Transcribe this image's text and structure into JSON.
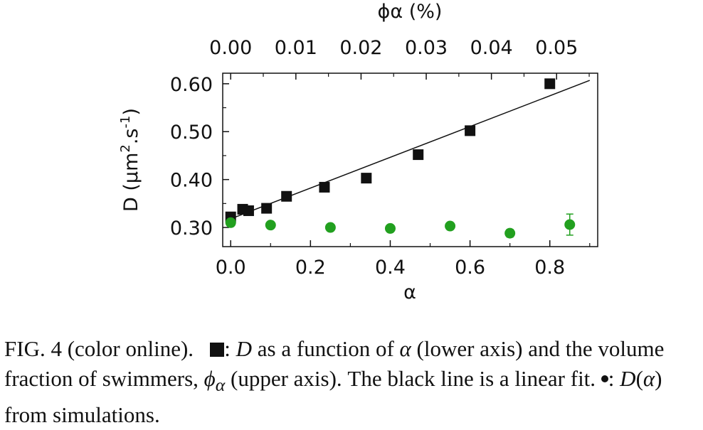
{
  "chart_data": {
    "type": "scatter",
    "xlabel": "α",
    "x2label": "ϕα (%)",
    "ylabel_parts": [
      "D (μm",
      "2",
      ".s",
      "-1",
      ")"
    ],
    "xlim": [
      -0.02,
      0.92
    ],
    "ylim": [
      0.26,
      0.622
    ],
    "x_ticks": [
      0.0,
      0.2,
      0.4,
      0.6,
      0.8
    ],
    "x_tick_labels": [
      "0.0",
      "0.2",
      "0.4",
      "0.6",
      "0.8"
    ],
    "x2_ticks": [
      0.0,
      0.01,
      0.02,
      0.03,
      0.04,
      0.05
    ],
    "x2_tick_labels": [
      "0.00",
      "0.01",
      "0.02",
      "0.03",
      "0.04",
      "0.05"
    ],
    "x2_per_x": 0.0612,
    "y_ticks": [
      0.3,
      0.4,
      0.5,
      0.6
    ],
    "y_tick_labels": [
      "0.30",
      "0.40",
      "0.50",
      "0.60"
    ],
    "grid": false,
    "series": [
      {
        "marker": "square",
        "color": "#111111",
        "x": [
          0.0,
          0.03,
          0.045,
          0.09,
          0.14,
          0.235,
          0.34,
          0.47,
          0.6,
          0.8
        ],
        "y": [
          0.322,
          0.338,
          0.335,
          0.34,
          0.365,
          0.384,
          0.403,
          0.452,
          0.502,
          0.6
        ]
      },
      {
        "marker": "circle",
        "color": "#22a01f",
        "x": [
          0.0,
          0.1,
          0.25,
          0.4,
          0.55,
          0.7,
          0.85
        ],
        "y": [
          0.31,
          0.305,
          0.3,
          0.298,
          0.303,
          0.288,
          0.306
        ],
        "err": [
          0.0,
          0.0,
          0.0,
          0.0,
          0.007,
          0.008,
          0.022
        ]
      }
    ],
    "fit_line": {
      "x": [
        0.0,
        0.9
      ],
      "y": [
        0.318,
        0.607
      ],
      "color": "#111111"
    }
  },
  "caption": {
    "intro": "FIG. 4 (color online).   ",
    "p1": ": ",
    "D1": "D",
    "p2": " as a function of ",
    "a1": "α",
    "p3": " (lower axis) and the volume fraction of swimmers, ",
    "phi": "ϕ",
    "phi_sub": "α",
    "p4": " (upper axis). The black line is a linear fit. ",
    "p5": ": ",
    "D2": "D",
    "p6": "(",
    "a2": "α",
    "p7": ") from simulations."
  }
}
